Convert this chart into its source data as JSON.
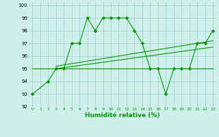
{
  "line1_x": [
    0,
    2,
    3,
    4,
    5,
    6,
    7,
    8,
    9,
    10,
    11,
    12,
    13,
    14,
    15,
    16,
    17,
    18,
    19,
    20,
    21,
    22,
    23
  ],
  "line1_y": [
    93,
    94,
    95,
    95,
    97,
    97,
    99,
    98,
    99,
    99,
    99,
    99,
    98,
    97,
    95,
    95,
    93,
    95,
    95,
    95,
    97,
    97,
    98
  ],
  "line2_x": [
    0,
    23
  ],
  "line2_y": [
    95,
    95
  ],
  "line3_x": [
    3,
    23
  ],
  "line3_y": [
    95.0,
    96.7
  ],
  "line4_x": [
    3,
    23
  ],
  "line4_y": [
    95.2,
    97.2
  ],
  "bg_color": "#cff0ea",
  "grid_color": "#99cccc",
  "line_color": "#009900",
  "xlabel": "Humidité relative (%)",
  "xlim": [
    -0.5,
    23.5
  ],
  "ylim": [
    92,
    100.3
  ],
  "yticks": [
    92,
    93,
    94,
    95,
    96,
    97,
    98,
    99,
    100
  ],
  "xticks": [
    0,
    1,
    2,
    3,
    4,
    5,
    6,
    7,
    8,
    9,
    10,
    11,
    12,
    13,
    14,
    15,
    16,
    17,
    18,
    19,
    20,
    21,
    22,
    23
  ]
}
